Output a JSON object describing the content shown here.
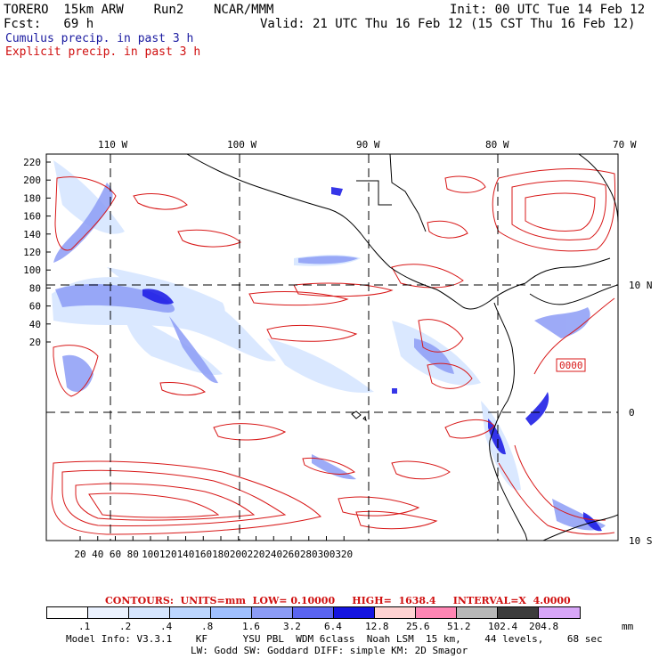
{
  "header": {
    "line1_left": "TORERO  15km ARW    Run2    NCAR/MMM",
    "line1_right": "Init: 00 UTC Tue 14 Feb 12",
    "line2_left": "Fcst:   69 h",
    "line2_right": "Valid: 21 UTC Thu 16 Feb 12 (15 CST Thu 16 Feb 12)",
    "cumulus": "Cumulus precip. in past 3 h",
    "explicit": "Explicit precip. in past 3 h"
  },
  "axes": {
    "lon_labels": [
      "110 W",
      "100 W",
      "90 W",
      "80 W",
      "70 W"
    ],
    "lat_labels": [
      "10 N",
      "0",
      "10 S"
    ],
    "y_ticks": [
      "220",
      "200",
      "180",
      "160",
      "140",
      "120",
      "100",
      "80",
      "60",
      "40",
      "20"
    ],
    "x_ticks": [
      "20",
      "40",
      "60",
      "80",
      "100",
      "120",
      "140",
      "160",
      "180",
      "200",
      "220",
      "240",
      "260",
      "280",
      "300",
      "320"
    ]
  },
  "map_label": "0000",
  "contours": {
    "units_label": "CONTOURS:  UNITS=mm  LOW= 0.10000",
    "high_label": "HIGH=  1638.4",
    "interval_label": "INTERVAL=X  4.0000"
  },
  "color_scale": {
    "levels": [
      ".1",
      ".2",
      ".4",
      ".8",
      "1.6",
      "3.2",
      "6.4",
      "12.8",
      "25.6",
      "51.2",
      "102.4",
      "204.8"
    ],
    "unit": "mm",
    "colors": [
      "#ffffff",
      "#ebf2ff",
      "#d6e6ff",
      "#bcd6ff",
      "#a0c0ff",
      "#8c9cf6",
      "#5a64f0",
      "#1414e0",
      "#ffd2d2",
      "#ff86b4",
      "#b8b8b8",
      "#3c3c3c",
      "#d8a6f8"
    ]
  },
  "footer": {
    "line1": "Model Info: V3.3.1    KF      YSU PBL  WDM 6class  Noah LSM  15 km,    44 levels,    68 sec",
    "line2": "LW: Godd SW: Goddard DIFF: simple KM: 2D Smagor"
  }
}
